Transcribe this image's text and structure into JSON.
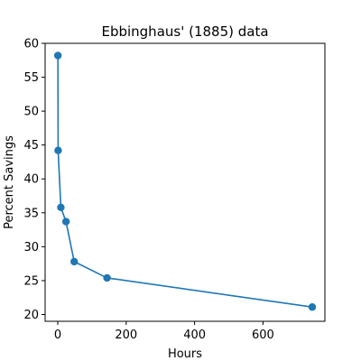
{
  "chart_data": {
    "type": "line",
    "title": "Ebbinghaus' (1885) data",
    "xlabel": "Hours",
    "ylabel": "Percent Savings",
    "xlim": [
      -37,
      781
    ],
    "ylim": [
      19,
      60
    ],
    "xticks": [
      0,
      200,
      400,
      600
    ],
    "yticks": [
      20,
      25,
      30,
      35,
      40,
      45,
      50,
      55,
      60
    ],
    "grid": false,
    "series": [
      {
        "color": "#1f77b4",
        "marker": "circle",
        "x": [
          0.33,
          1,
          9,
          24,
          48,
          144,
          744
        ],
        "y": [
          58.2,
          44.2,
          35.8,
          33.7,
          27.8,
          25.4,
          21.1
        ]
      }
    ]
  }
}
